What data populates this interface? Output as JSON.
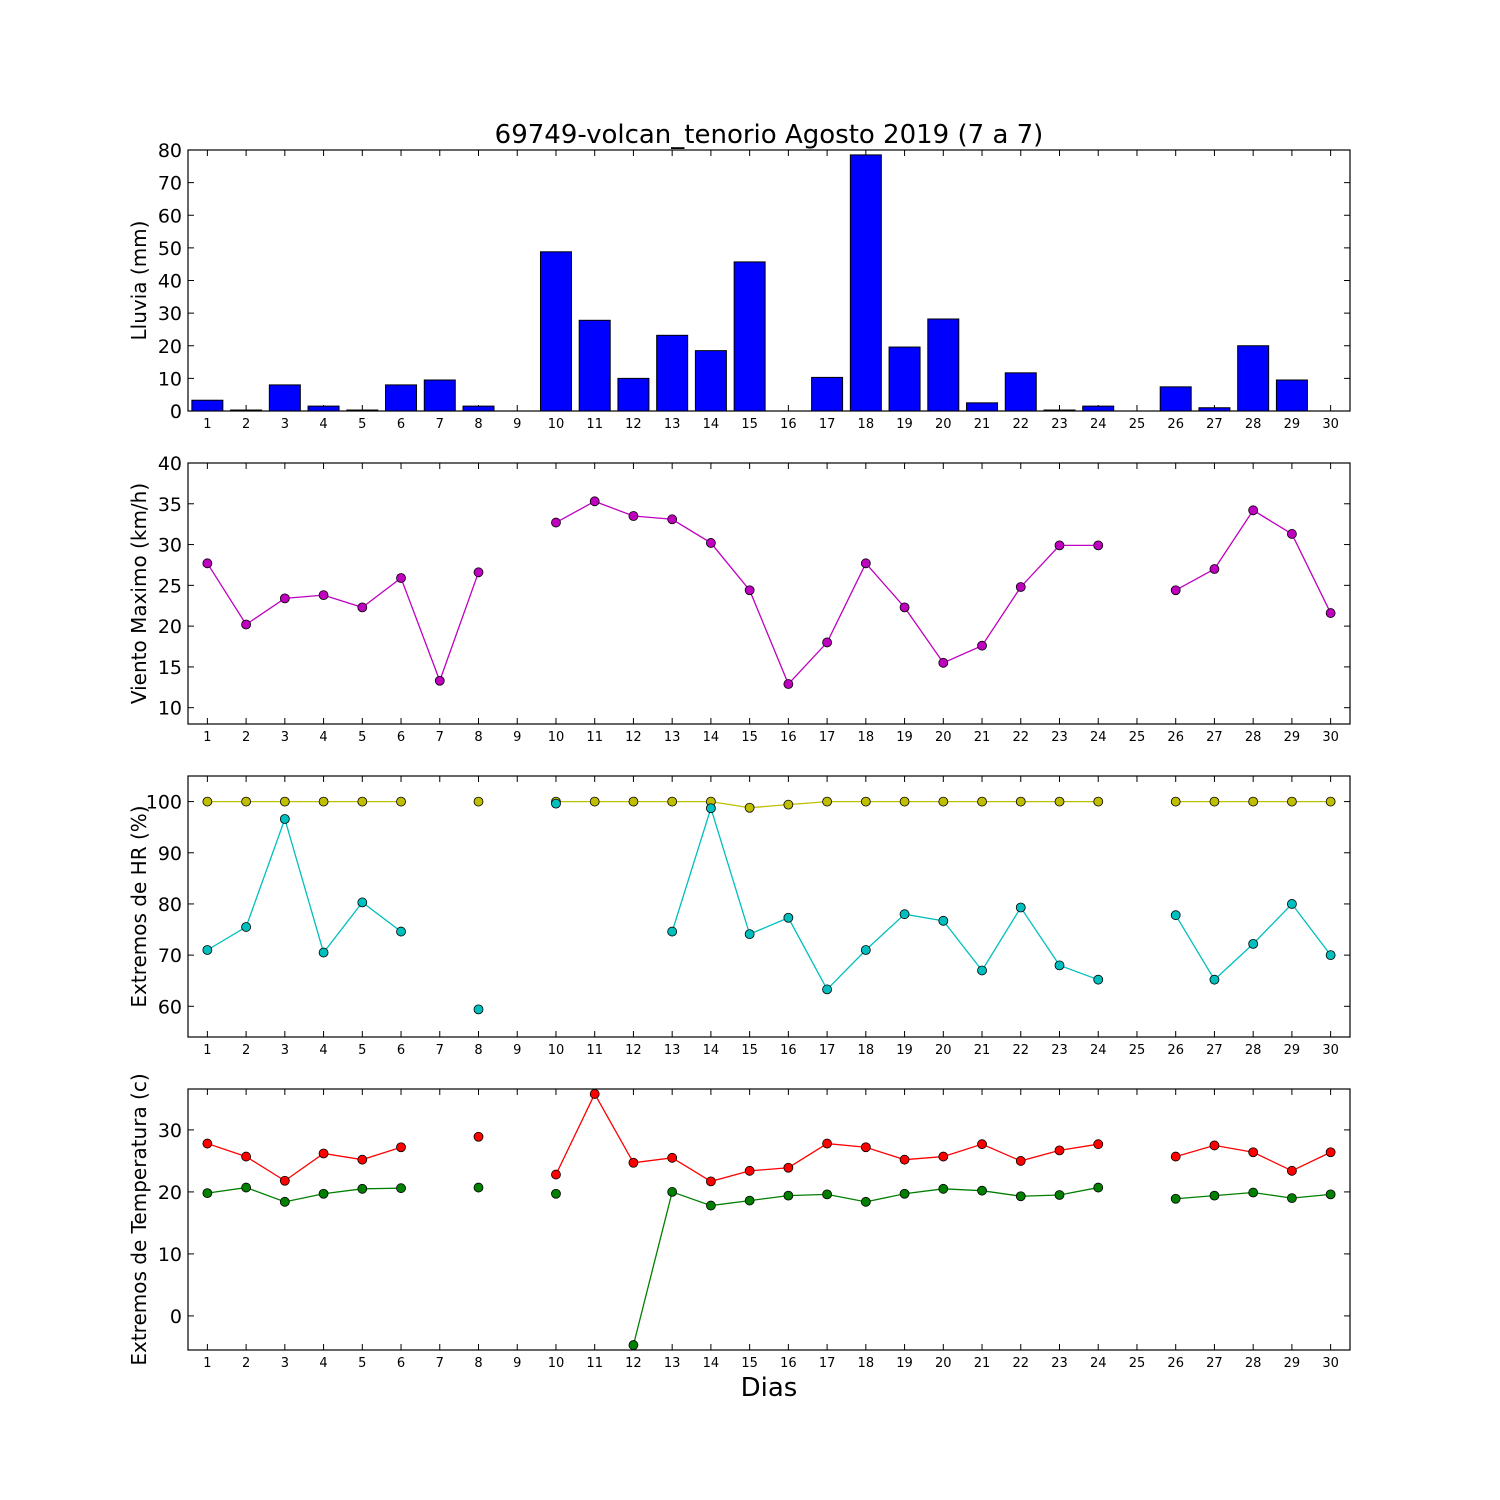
{
  "chart_data": [
    {
      "type": "bar",
      "title": "69749-volcan_tenorio Agosto 2019  (7 a 7)",
      "ylabel": "Lluvia (mm)",
      "xlabel": "",
      "ylim": [
        0,
        80
      ],
      "yticks": [
        0,
        10,
        20,
        30,
        40,
        50,
        60,
        70,
        80
      ],
      "categories": [
        1,
        2,
        3,
        4,
        5,
        6,
        7,
        8,
        9,
        10,
        11,
        12,
        13,
        14,
        15,
        16,
        17,
        18,
        19,
        20,
        21,
        22,
        23,
        24,
        25,
        26,
        27,
        28,
        29,
        30
      ],
      "series": [
        {
          "color": "#0000ff",
          "values": [
            3.3,
            0.3,
            8.0,
            1.5,
            0.3,
            8.0,
            9.5,
            1.5,
            null,
            48.8,
            27.8,
            10.0,
            23.2,
            18.5,
            45.7,
            0.0,
            10.3,
            78.5,
            19.6,
            28.2,
            2.5,
            11.7,
            0.3,
            1.5,
            null,
            7.4,
            1.0,
            20.0,
            9.5,
            null
          ]
        }
      ]
    },
    {
      "type": "line",
      "ylabel": "Viento Maximo (km/h)",
      "ylim": [
        8,
        40
      ],
      "yticks": [
        10,
        15,
        20,
        25,
        30,
        35,
        40
      ],
      "x": [
        1,
        2,
        3,
        4,
        5,
        6,
        7,
        8,
        9,
        10,
        11,
        12,
        13,
        14,
        15,
        16,
        17,
        18,
        19,
        20,
        21,
        22,
        23,
        24,
        25,
        26,
        27,
        28,
        29,
        30
      ],
      "series": [
        {
          "color": "#bf00bf",
          "values": [
            27.7,
            20.2,
            23.4,
            23.8,
            22.3,
            25.9,
            13.3,
            26.6,
            null,
            32.7,
            35.3,
            33.5,
            33.1,
            30.2,
            24.4,
            12.9,
            18.0,
            27.7,
            22.3,
            15.5,
            17.6,
            24.8,
            29.9,
            29.9,
            null,
            24.4,
            27.0,
            34.2,
            31.3,
            21.6
          ]
        }
      ]
    },
    {
      "type": "line",
      "ylabel": "Extremos de HR (%)",
      "ylim": [
        54,
        105
      ],
      "yticks": [
        60,
        70,
        80,
        90,
        100
      ],
      "x": [
        1,
        2,
        3,
        4,
        5,
        6,
        7,
        8,
        9,
        10,
        11,
        12,
        13,
        14,
        15,
        16,
        17,
        18,
        19,
        20,
        21,
        22,
        23,
        24,
        25,
        26,
        27,
        28,
        29,
        30
      ],
      "series": [
        {
          "color": "#bfbf00",
          "values": [
            100,
            100,
            100,
            100,
            100,
            100,
            null,
            100,
            null,
            100,
            100,
            100,
            100,
            100,
            98.8,
            99.4,
            100,
            100,
            100,
            100,
            100,
            100,
            100,
            100,
            null,
            100,
            100,
            100,
            100,
            100
          ]
        },
        {
          "color": "#00bfbf",
          "values": [
            71.0,
            75.5,
            96.6,
            70.5,
            80.3,
            74.6,
            null,
            59.4,
            null,
            99.6,
            null,
            null,
            74.6,
            98.7,
            74.1,
            77.3,
            63.3,
            71.0,
            78.0,
            76.7,
            67.0,
            79.3,
            68.0,
            65.2,
            null,
            77.8,
            65.2,
            72.2,
            80.0,
            70.0
          ]
        }
      ]
    },
    {
      "type": "line",
      "ylabel": "Extremos de Temperatura (c)",
      "xlabel": "Dias",
      "ylim": [
        -5.5,
        36.6
      ],
      "yticks": [
        0,
        10,
        20,
        30
      ],
      "x": [
        1,
        2,
        3,
        4,
        5,
        6,
        7,
        8,
        9,
        10,
        11,
        12,
        13,
        14,
        15,
        16,
        17,
        18,
        19,
        20,
        21,
        22,
        23,
        24,
        25,
        26,
        27,
        28,
        29,
        30
      ],
      "series": [
        {
          "color": "#ff0000",
          "values": [
            27.8,
            25.7,
            21.8,
            26.2,
            25.2,
            27.2,
            null,
            28.9,
            null,
            22.8,
            35.8,
            24.7,
            25.5,
            21.7,
            23.4,
            23.9,
            27.8,
            27.2,
            25.2,
            25.7,
            27.7,
            25.0,
            26.7,
            27.7,
            null,
            25.7,
            27.5,
            26.4,
            23.4,
            26.4
          ]
        },
        {
          "color": "#007f00",
          "values": [
            19.8,
            20.7,
            18.4,
            19.7,
            20.5,
            20.6,
            null,
            20.7,
            null,
            19.7,
            null,
            -4.7,
            20.0,
            17.8,
            18.6,
            19.4,
            19.6,
            18.4,
            19.7,
            20.5,
            20.2,
            19.3,
            19.5,
            20.7,
            null,
            18.9,
            19.4,
            19.9,
            19.0,
            19.6
          ]
        }
      ]
    }
  ]
}
